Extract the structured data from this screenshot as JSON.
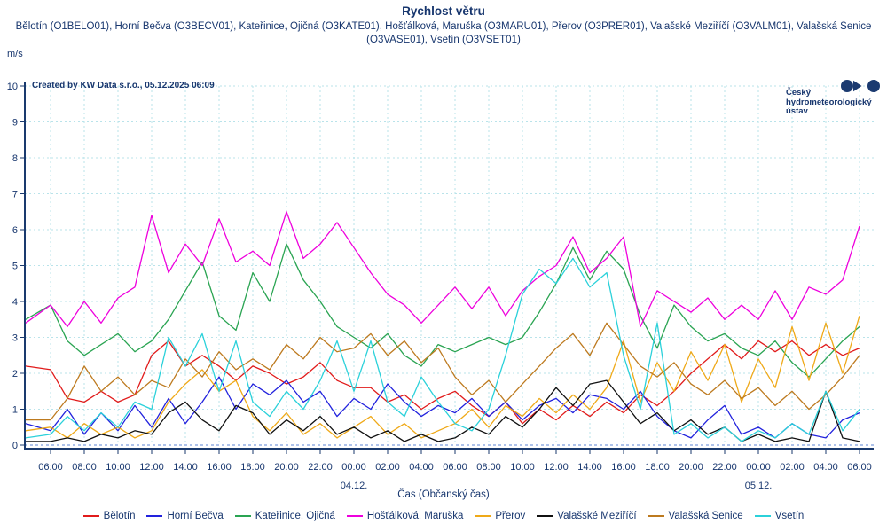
{
  "header": {
    "title": "Rychlost větru",
    "subtitle": "Bělotín (O1BELO01), Horní Bečva (O3BECV01), Kateřinice, Ojičná (O3KATE01), Hošťálková, Maruška (O3MARU01), Přerov (O3PRER01), Valašské Meziříčí (O3VALM01), Valašská Senice (O3VASE01), Vsetín (O3VSET01)",
    "unit_label": "m/s"
  },
  "watermark": "Created by KW Data s.r.o., 05.12.2025 06:09",
  "logo": {
    "lines": [
      "Český",
      "hydrometeorologický",
      "ústav"
    ],
    "color": "#1b3a70"
  },
  "colors": {
    "text": "#17366e",
    "axis": "#1a3a6e",
    "grid": "#b9e3ea",
    "zero_line": "#5c85d6"
  },
  "chart_data": {
    "type": "line",
    "title": "Rychlost větru",
    "ylabel": "m/s",
    "xlabel": "Čas (Občanský čas)",
    "ylim": [
      0,
      10
    ],
    "y_ticks": [
      0,
      1,
      2,
      3,
      4,
      5,
      6,
      7,
      8,
      9,
      10
    ],
    "grid": "on",
    "legend_position": "bottom",
    "x_span_hours": 48,
    "sample_interval_hours": 1,
    "x_tick_labels": [
      "06:00",
      "08:00",
      "10:00",
      "12:00",
      "14:00",
      "16:00",
      "18:00",
      "20:00",
      "22:00",
      "00:00",
      "02:00",
      "04:00",
      "06:00",
      "08:00",
      "10:00",
      "12:00",
      "14:00",
      "16:00",
      "18:00",
      "20:00",
      "22:00",
      "00:00",
      "02:00",
      "04:00",
      "06:00"
    ],
    "date_labels": [
      {
        "label": "04.12.",
        "hour": 18
      },
      {
        "label": "05.12.",
        "hour": 42
      }
    ],
    "series": [
      {
        "name": "Bělotín",
        "color": "#e11b1b",
        "axis_start_value": 2.2,
        "values": [
          2.1,
          1.3,
          1.2,
          1.5,
          1.2,
          1.4,
          2.5,
          2.9,
          2.2,
          2.5,
          2.2,
          1.8,
          2.2,
          2.0,
          1.7,
          1.9,
          2.3,
          1.8,
          1.6,
          1.6,
          1.2,
          1.4,
          1.0,
          1.3,
          1.5,
          1.1,
          0.8,
          1.2,
          0.6,
          1.0,
          0.7,
          1.1,
          0.8,
          1.2,
          0.9,
          1.4,
          1.1,
          1.5,
          2.0,
          2.4,
          2.8,
          2.4,
          2.9,
          2.6,
          2.9,
          2.5,
          2.8,
          2.5,
          2.7
        ]
      },
      {
        "name": "Horní Bečva",
        "color": "#2222dd",
        "axis_start_value": 0.6,
        "values": [
          0.4,
          1.0,
          0.3,
          0.9,
          0.4,
          1.1,
          0.5,
          1.3,
          0.6,
          1.2,
          1.9,
          1.0,
          1.7,
          1.4,
          1.8,
          1.2,
          1.5,
          0.8,
          1.3,
          1.0,
          1.7,
          1.2,
          0.8,
          1.1,
          0.9,
          1.3,
          0.8,
          1.2,
          0.7,
          1.1,
          1.3,
          0.9,
          1.4,
          1.3,
          1.0,
          1.5,
          0.8,
          0.4,
          0.2,
          0.7,
          1.1,
          0.3,
          0.5,
          0.2,
          0.6,
          0.3,
          0.2,
          0.7,
          0.9
        ]
      },
      {
        "name": "Kateřinice, Ojičná",
        "color": "#2aa452",
        "axis_start_value": 3.5,
        "values": [
          3.9,
          2.9,
          2.5,
          2.8,
          3.1,
          2.6,
          2.9,
          3.5,
          4.3,
          5.1,
          3.6,
          3.2,
          4.8,
          4.0,
          5.6,
          4.6,
          4.0,
          3.3,
          3.0,
          2.7,
          3.1,
          2.5,
          2.2,
          2.8,
          2.6,
          2.8,
          3.0,
          2.8,
          3.0,
          3.7,
          4.5,
          5.5,
          4.6,
          5.4,
          4.9,
          3.6,
          2.7,
          3.9,
          3.3,
          2.9,
          3.1,
          2.7,
          2.5,
          2.9,
          2.3,
          1.9,
          2.4,
          2.9,
          3.3
        ]
      },
      {
        "name": "Hošťálková, Maruška",
        "color": "#ee00dd",
        "axis_start_value": 3.4,
        "values": [
          3.9,
          3.3,
          4.0,
          3.4,
          4.1,
          4.4,
          6.4,
          4.8,
          5.6,
          5.0,
          6.3,
          5.1,
          5.4,
          5.0,
          6.5,
          5.2,
          5.6,
          6.2,
          5.5,
          4.8,
          4.2,
          3.9,
          3.4,
          3.9,
          4.4,
          3.8,
          4.4,
          3.6,
          4.3,
          4.7,
          5.0,
          5.8,
          4.8,
          5.2,
          5.8,
          3.3,
          4.3,
          4.0,
          3.7,
          4.1,
          3.5,
          3.9,
          3.5,
          4.3,
          3.5,
          4.4,
          4.2,
          4.6,
          6.1
        ]
      },
      {
        "name": "Přerov",
        "color": "#efa918",
        "axis_start_value": 0.4,
        "values": [
          0.5,
          0.2,
          0.6,
          0.3,
          0.5,
          0.2,
          0.4,
          1.2,
          1.7,
          2.1,
          1.5,
          1.8,
          0.8,
          0.4,
          0.9,
          0.3,
          0.6,
          0.2,
          0.5,
          0.8,
          0.3,
          0.6,
          0.2,
          0.4,
          0.6,
          1.0,
          0.5,
          1.1,
          0.8,
          1.3,
          0.9,
          1.4,
          1.0,
          1.6,
          2.9,
          1.2,
          2.3,
          1.5,
          2.6,
          1.8,
          2.8,
          1.2,
          2.4,
          1.6,
          3.3,
          1.8,
          3.4,
          2.0,
          3.6
        ]
      },
      {
        "name": "Valašské Meziříčí",
        "color": "#111111",
        "axis_start_value": 0.1,
        "values": [
          0.1,
          0.2,
          0.1,
          0.3,
          0.2,
          0.4,
          0.3,
          0.9,
          1.2,
          0.7,
          0.4,
          1.1,
          0.9,
          0.3,
          0.7,
          0.4,
          0.8,
          0.3,
          0.5,
          0.2,
          0.4,
          0.1,
          0.3,
          0.1,
          0.2,
          0.5,
          0.3,
          0.8,
          0.5,
          1.0,
          1.6,
          1.1,
          1.7,
          1.8,
          1.2,
          0.6,
          0.9,
          0.4,
          0.7,
          0.3,
          0.5,
          0.1,
          0.3,
          0.1,
          0.2,
          0.1,
          1.5,
          0.2,
          0.1
        ]
      },
      {
        "name": "Valašská Senice",
        "color": "#bd7a1f",
        "axis_start_value": 0.7,
        "values": [
          0.7,
          1.3,
          2.2,
          1.5,
          1.9,
          1.4,
          1.8,
          1.6,
          2.4,
          1.9,
          2.6,
          2.1,
          2.4,
          2.1,
          2.8,
          2.4,
          3.0,
          2.6,
          2.7,
          3.1,
          2.5,
          2.9,
          2.3,
          2.7,
          1.9,
          1.4,
          1.8,
          1.2,
          1.7,
          2.2,
          2.7,
          3.1,
          2.5,
          3.4,
          2.8,
          2.2,
          1.9,
          2.3,
          1.7,
          1.4,
          1.8,
          1.3,
          1.6,
          1.1,
          1.5,
          1.0,
          1.4,
          1.9,
          2.5
        ]
      },
      {
        "name": "Vsetín",
        "color": "#2bd1da",
        "axis_start_value": 0.2,
        "values": [
          0.3,
          0.8,
          0.4,
          0.9,
          0.5,
          1.2,
          1.0,
          3.0,
          2.2,
          3.1,
          1.5,
          2.9,
          1.2,
          0.8,
          1.5,
          1.0,
          1.8,
          2.9,
          1.5,
          2.9,
          1.2,
          0.8,
          1.9,
          1.2,
          0.6,
          0.4,
          1.0,
          2.5,
          4.2,
          4.9,
          4.5,
          5.2,
          4.4,
          4.8,
          2.5,
          1.0,
          3.4,
          0.3,
          0.6,
          0.2,
          0.5,
          0.1,
          0.4,
          0.2,
          0.6,
          0.3,
          1.5,
          0.4,
          1.0
        ]
      }
    ]
  }
}
